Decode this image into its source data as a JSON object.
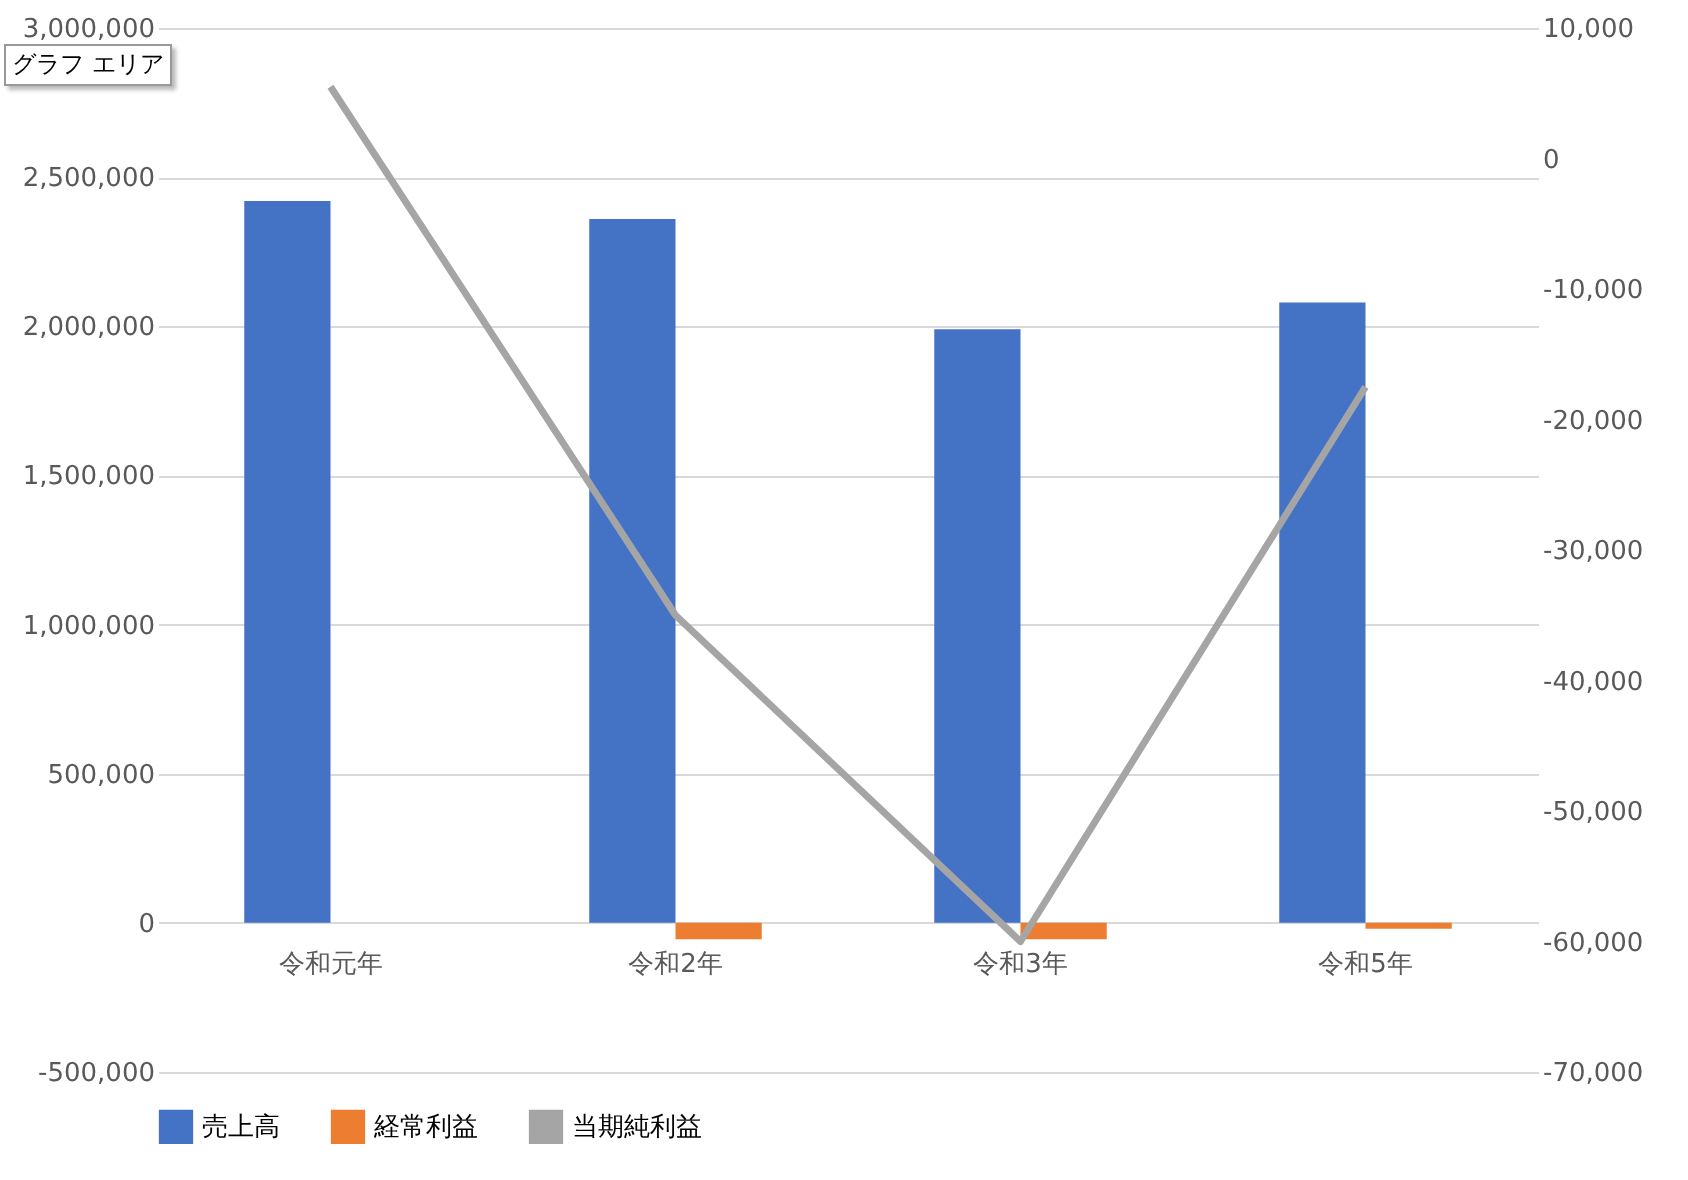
{
  "chart_data": {
    "type": "bar",
    "categories": [
      "令和元年",
      "令和2年",
      "令和3年",
      "令和5年"
    ],
    "series": [
      {
        "name": "売上高",
        "color": "#4472c4",
        "values": [
          2420000,
          2360000,
          1990000,
          2080000
        ]
      },
      {
        "name": "経常利益",
        "color": "#ed7d31",
        "values": [
          0,
          -55000,
          -55000,
          -20000
        ]
      },
      {
        "name": "当期純利益",
        "color": "#a5a5a5",
        "type": "line",
        "axis": "y2",
        "values": [
          5500,
          -35000,
          -60000,
          -17500
        ]
      }
    ],
    "ylim": [
      -500000,
      3000000
    ],
    "yticks": [
      {
        "value": -500000,
        "label": "-500,000"
      },
      0,
      {
        "value": 500000,
        "label": "500,000"
      },
      {
        "value": 1000000,
        "label": "1,000,000"
      },
      {
        "value": 1500000,
        "label": "1,500,000"
      },
      {
        "value": 2000000,
        "label": "2,000,000"
      },
      {
        "value": 2500000,
        "label": "2,500,000"
      },
      {
        "value": 3000000,
        "label": "3,000,000"
      }
    ],
    "y2lim": [
      -70000,
      10000
    ],
    "y2ticks": [
      {
        "value": -70000,
        "label": "-70,000"
      },
      {
        "value": -60000,
        "label": "-60,000"
      },
      {
        "value": -50000,
        "label": "-50,000"
      },
      {
        "value": -40000,
        "label": "-40,000"
      },
      {
        "value": -30000,
        "label": "-30,000"
      },
      {
        "value": -20000,
        "label": "-20,000"
      },
      {
        "value": -10000,
        "label": "-10,000"
      },
      0,
      {
        "value": 10000,
        "label": "10,000"
      }
    ],
    "grid": "y",
    "legend": "bottom",
    "marker": "none",
    "line_style": "solid",
    "annotations": [
      "グラフ エリア"
    ]
  }
}
